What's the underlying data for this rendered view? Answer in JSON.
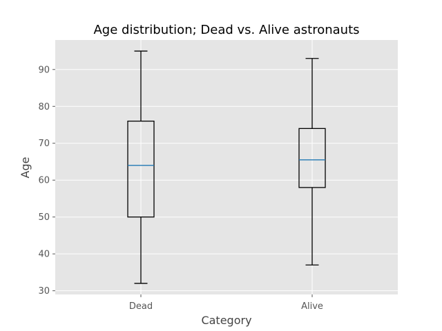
{
  "chart_data": {
    "type": "boxplot",
    "title": "Age distribution; Dead vs. Alive astronauts",
    "xlabel": "Category",
    "ylabel": "Age",
    "categories": [
      "Dead",
      "Alive"
    ],
    "boxes": [
      {
        "category": "Dead",
        "min": 32,
        "q1": 50,
        "median": 64,
        "q3": 76,
        "max": 95
      },
      {
        "category": "Alive",
        "min": 37,
        "q1": 58,
        "median": 65.5,
        "q3": 74,
        "max": 93
      }
    ],
    "ylim": [
      29,
      98
    ],
    "yticks": [
      30,
      40,
      50,
      60,
      70,
      80,
      90
    ],
    "grid": true,
    "colors": {
      "plot_background": "#e5e5e5",
      "grid": "#ffffff",
      "box": "#000000",
      "median": "#1f77b4"
    }
  }
}
